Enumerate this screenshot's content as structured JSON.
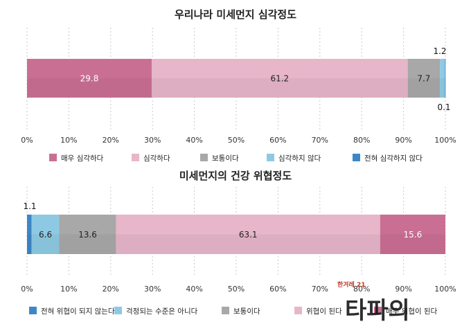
{
  "chart_data": [
    {
      "type": "bar",
      "orientation": "horizontal-stacked-100",
      "title": "우리나라 미세먼지 심각정도",
      "xlim": [
        0,
        100
      ],
      "x_ticks": [
        "0%",
        "10%",
        "20%",
        "30%",
        "40%",
        "50%",
        "60%",
        "70%",
        "80%",
        "90%",
        "100%"
      ],
      "grid": true,
      "legend_position": "bottom",
      "series": [
        {
          "name": "매우 심각하다",
          "value": 29.8,
          "label": "29.8",
          "color": "#c96f94"
        },
        {
          "name": "심각하다",
          "value": 61.2,
          "label": "61.2",
          "color": "#e7b6c9"
        },
        {
          "name": "보통이다",
          "value": 7.7,
          "label": "7.7",
          "color": "#a8a8a8"
        },
        {
          "name": "심각하지 않다",
          "value": 1.2,
          "label": "1.2",
          "color": "#8ec9e3"
        },
        {
          "name": "전혀 심각하지 않다",
          "value": 0.1,
          "label": "0.1",
          "color": "#3d87c8"
        }
      ]
    },
    {
      "type": "bar",
      "orientation": "horizontal-stacked-100",
      "title": "미세먼지의 건강 위협정도",
      "xlim": [
        0,
        100
      ],
      "x_ticks": [
        "0%",
        "10%",
        "20%",
        "30%",
        "40%",
        "50%",
        "60%",
        "70%",
        "80%",
        "90%",
        "100%"
      ],
      "grid": true,
      "legend_position": "bottom",
      "series": [
        {
          "name": "전혀 위협이 되지 않는다",
          "value": 1.1,
          "label": "1.1",
          "color": "#3d87c8"
        },
        {
          "name": "걱정되는 수준은 아니다",
          "value": 6.6,
          "label": "6.6",
          "color": "#8ec9e3"
        },
        {
          "name": "보통이다",
          "value": 13.6,
          "label": "13.6",
          "color": "#a8a8a8"
        },
        {
          "name": "위협이 된다",
          "value": 63.1,
          "label": "63.1",
          "color": "#e7b6c9"
        },
        {
          "name": "매우 위협이 된다",
          "value": 15.6,
          "label": "15.6",
          "color": "#c96f94"
        }
      ]
    }
  ],
  "watermark": {
    "text": "타파의",
    "subtext": "한겨레 21"
  }
}
